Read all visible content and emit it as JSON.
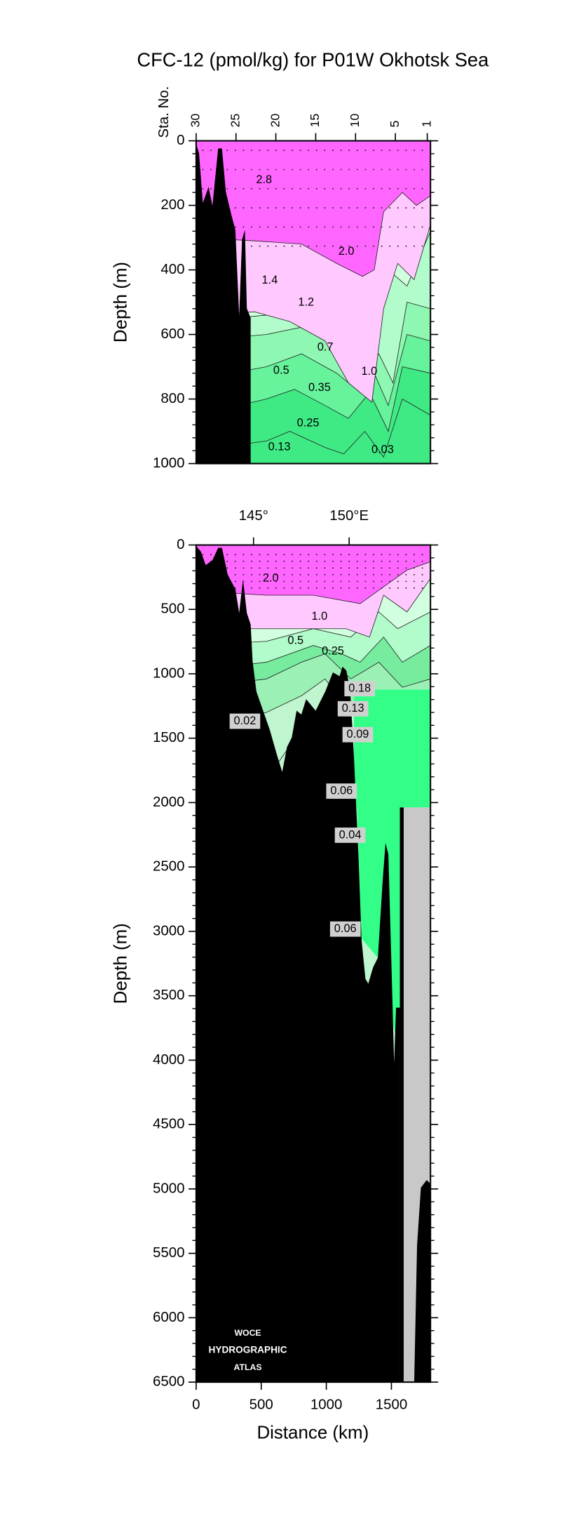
{
  "chart_data": [
    {
      "type": "contour",
      "title": "CFC-12 (pmol/kg) for P01W Okhotsk Sea",
      "x2label": "Sta. No.",
      "ylabel": "Depth (m)",
      "xlim": [
        0,
        1800
      ],
      "x2lim": [
        30,
        0.6
      ],
      "x2ticks": [
        30,
        25,
        20,
        15,
        10,
        5,
        1
      ],
      "ylim": [
        0,
        1000
      ],
      "yticks": [
        0,
        200,
        400,
        600,
        800,
        1000
      ],
      "layer_colors": [
        "#3fea85",
        "#66f39c",
        "#8ef7b2",
        "#b2fbca",
        "#d2ffe0",
        "#ffc8ff",
        "#ff66ff"
      ],
      "bathymetry_color": "#000000",
      "contour_labels": [
        "2.8",
        "2.0",
        "1.4",
        "1.2",
        "0.7",
        "1.0",
        "0.5",
        "0.35",
        "0.25",
        "0.13",
        "0.03"
      ]
    },
    {
      "type": "contour",
      "ylabel": "Depth (m)",
      "xlabel": "Distance (km)",
      "xlim": [
        0,
        1800
      ],
      "xticks": [
        0,
        500,
        1000,
        1500
      ],
      "x2lim": [
        142,
        154.25
      ],
      "x2ticks": [
        {
          "value": 145,
          "label": "145°"
        },
        {
          "value": 150,
          "label": "150°E"
        }
      ],
      "ylim": [
        0,
        6500
      ],
      "yticks": [
        0,
        500,
        1000,
        1500,
        2000,
        2500,
        3000,
        3500,
        4000,
        4500,
        5000,
        5500,
        6000,
        6500
      ],
      "layer_colors": [
        "#bff5cf",
        "#9bf0b6",
        "#77ec9e",
        "#b2fbca",
        "#d2ffe0",
        "#ffc8ff",
        "#ff66ff"
      ],
      "bathymetry_color": "#000000",
      "nodata_color": "#c8c8c8",
      "contour_labels": [
        "2.0",
        "1.0",
        "0.5",
        "0.25",
        "0.18",
        "0.13",
        "0.09",
        "0.02",
        "0.06",
        "0.04",
        "0.06"
      ],
      "watermark": [
        "WOCE",
        "HYDROGRAPHIC",
        "ATLAS"
      ]
    }
  ]
}
